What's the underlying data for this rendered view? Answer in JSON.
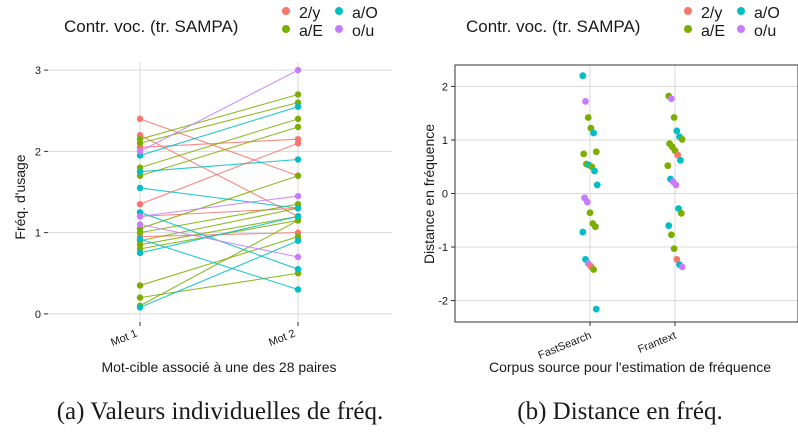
{
  "colors": {
    "2/y": "#F8766D",
    "a/E": "#7CAE00",
    "a/O": "#00BFC4",
    "o/u": "#C77CFF"
  },
  "chart_data": [
    {
      "type": "line",
      "legend": {
        "title": "Contr. voc. (tr. SAMPA)",
        "entries": [
          "2/y",
          "a/E",
          "a/O",
          "o/u"
        ],
        "placement": "top"
      },
      "xlabel": "Mot-cible associé à une des 28 paires",
      "ylabel": "Fréq. d'usage",
      "categories": [
        "Mot 1",
        "Mot 2"
      ],
      "ylim": [
        -0.1,
        3.1
      ],
      "yticks": [
        "0",
        "1",
        "2",
        "3"
      ],
      "grid": true,
      "caption": "(a) Valeurs individuelles de fréq.",
      "pairs": [
        {
          "group": "2/y",
          "values": [
            2.4,
            1.7
          ]
        },
        {
          "group": "2/y",
          "values": [
            2.05,
            2.15
          ]
        },
        {
          "group": "2/y",
          "values": [
            1.35,
            2.1
          ]
        },
        {
          "group": "2/y",
          "values": [
            1.2,
            1.3
          ]
        },
        {
          "group": "2/y",
          "values": [
            2.2,
            1.2
          ]
        },
        {
          "group": "2/y",
          "values": [
            0.95,
            1.0
          ]
        },
        {
          "group": "a/E",
          "values": [
            2.15,
            2.7
          ]
        },
        {
          "group": "a/E",
          "values": [
            2.1,
            2.6
          ]
        },
        {
          "group": "a/E",
          "values": [
            1.8,
            2.4
          ]
        },
        {
          "group": "a/E",
          "values": [
            1.7,
            2.3
          ]
        },
        {
          "group": "a/E",
          "values": [
            1.05,
            1.7
          ]
        },
        {
          "group": "a/E",
          "values": [
            1.0,
            1.35
          ]
        },
        {
          "group": "a/E",
          "values": [
            0.9,
            1.3
          ]
        },
        {
          "group": "a/E",
          "values": [
            0.85,
            1.2
          ]
        },
        {
          "group": "a/E",
          "values": [
            0.8,
            1.15
          ]
        },
        {
          "group": "a/E",
          "values": [
            0.35,
            0.95
          ]
        },
        {
          "group": "a/E",
          "values": [
            0.2,
            0.5
          ]
        },
        {
          "group": "a/E",
          "values": [
            0.1,
            1.15
          ]
        },
        {
          "group": "a/O",
          "values": [
            1.95,
            2.55
          ]
        },
        {
          "group": "a/O",
          "values": [
            1.75,
            1.9
          ]
        },
        {
          "group": "a/O",
          "values": [
            1.55,
            1.3
          ]
        },
        {
          "group": "a/O",
          "values": [
            1.25,
            0.55
          ]
        },
        {
          "group": "a/O",
          "values": [
            0.92,
            0.3
          ]
        },
        {
          "group": "a/O",
          "values": [
            0.75,
            1.2
          ]
        },
        {
          "group": "a/O",
          "values": [
            0.08,
            0.9
          ]
        },
        {
          "group": "o/u",
          "values": [
            2.0,
            3.0
          ]
        },
        {
          "group": "o/u",
          "values": [
            1.2,
            1.45
          ]
        },
        {
          "group": "o/u",
          "values": [
            1.1,
            0.7
          ]
        }
      ]
    },
    {
      "type": "scatter",
      "legend": {
        "title": "Contr. voc. (tr. SAMPA)",
        "entries": [
          "2/y",
          "a/E",
          "a/O",
          "o/u"
        ],
        "placement": "top"
      },
      "xlabel": "Corpus source pour l'estimation de fréquence",
      "ylabel": "Distance en fréquence",
      "categories": [
        "FastSearch",
        "Frantext"
      ],
      "ylim": [
        -2.4,
        2.4
      ],
      "yticks": [
        "-2",
        "-1",
        "0",
        "1",
        "2"
      ],
      "grid": true,
      "caption": "(b) Distance en fréq.",
      "points": [
        {
          "x": "FastSearch",
          "y": 2.2,
          "group": "a/O"
        },
        {
          "x": "FastSearch",
          "y": 1.72,
          "group": "o/u"
        },
        {
          "x": "FastSearch",
          "y": 1.42,
          "group": "a/E"
        },
        {
          "x": "FastSearch",
          "y": 1.22,
          "group": "a/E"
        },
        {
          "x": "FastSearch",
          "y": 1.13,
          "group": "a/O"
        },
        {
          "x": "FastSearch",
          "y": 0.78,
          "group": "a/E"
        },
        {
          "x": "FastSearch",
          "y": 0.74,
          "group": "a/E"
        },
        {
          "x": "FastSearch",
          "y": 0.55,
          "group": "a/E"
        },
        {
          "x": "FastSearch",
          "y": 0.53,
          "group": "a/O"
        },
        {
          "x": "FastSearch",
          "y": 0.5,
          "group": "a/E"
        },
        {
          "x": "FastSearch",
          "y": 0.42,
          "group": "a/O"
        },
        {
          "x": "FastSearch",
          "y": 0.16,
          "group": "a/O"
        },
        {
          "x": "FastSearch",
          "y": -0.08,
          "group": "o/u"
        },
        {
          "x": "FastSearch",
          "y": -0.16,
          "group": "o/u"
        },
        {
          "x": "FastSearch",
          "y": -0.36,
          "group": "a/E"
        },
        {
          "x": "FastSearch",
          "y": -0.56,
          "group": "a/E"
        },
        {
          "x": "FastSearch",
          "y": -0.62,
          "group": "a/E"
        },
        {
          "x": "FastSearch",
          "y": -0.72,
          "group": "a/O"
        },
        {
          "x": "FastSearch",
          "y": -1.23,
          "group": "a/O"
        },
        {
          "x": "FastSearch",
          "y": -1.31,
          "group": "o/u"
        },
        {
          "x": "FastSearch",
          "y": -1.36,
          "group": "2/y"
        },
        {
          "x": "FastSearch",
          "y": -1.42,
          "group": "a/E"
        },
        {
          "x": "FastSearch",
          "y": -2.16,
          "group": "a/O"
        },
        {
          "x": "Frantext",
          "y": 1.82,
          "group": "a/E"
        },
        {
          "x": "Frantext",
          "y": 1.77,
          "group": "o/u"
        },
        {
          "x": "Frantext",
          "y": 1.42,
          "group": "a/E"
        },
        {
          "x": "Frantext",
          "y": 1.17,
          "group": "a/O"
        },
        {
          "x": "Frantext",
          "y": 1.06,
          "group": "a/O"
        },
        {
          "x": "Frantext",
          "y": 1.01,
          "group": "a/E"
        },
        {
          "x": "Frantext",
          "y": 0.93,
          "group": "a/E"
        },
        {
          "x": "Frantext",
          "y": 0.87,
          "group": "a/E"
        },
        {
          "x": "Frantext",
          "y": 0.8,
          "group": "a/E"
        },
        {
          "x": "Frantext",
          "y": 0.72,
          "group": "2/y"
        },
        {
          "x": "Frantext",
          "y": 0.62,
          "group": "a/O"
        },
        {
          "x": "Frantext",
          "y": 0.52,
          "group": "a/E"
        },
        {
          "x": "Frantext",
          "y": 0.27,
          "group": "a/O"
        },
        {
          "x": "Frantext",
          "y": 0.22,
          "group": "o/u"
        },
        {
          "x": "Frantext",
          "y": 0.16,
          "group": "o/u"
        },
        {
          "x": "Frantext",
          "y": -0.28,
          "group": "a/O"
        },
        {
          "x": "Frantext",
          "y": -0.37,
          "group": "a/E"
        },
        {
          "x": "Frantext",
          "y": -0.6,
          "group": "a/O"
        },
        {
          "x": "Frantext",
          "y": -0.77,
          "group": "a/E"
        },
        {
          "x": "Frantext",
          "y": -1.03,
          "group": "a/E"
        },
        {
          "x": "Frantext",
          "y": -1.23,
          "group": "2/y"
        },
        {
          "x": "Frantext",
          "y": -1.33,
          "group": "a/O"
        },
        {
          "x": "Frantext",
          "y": -1.37,
          "group": "o/u"
        }
      ]
    }
  ]
}
